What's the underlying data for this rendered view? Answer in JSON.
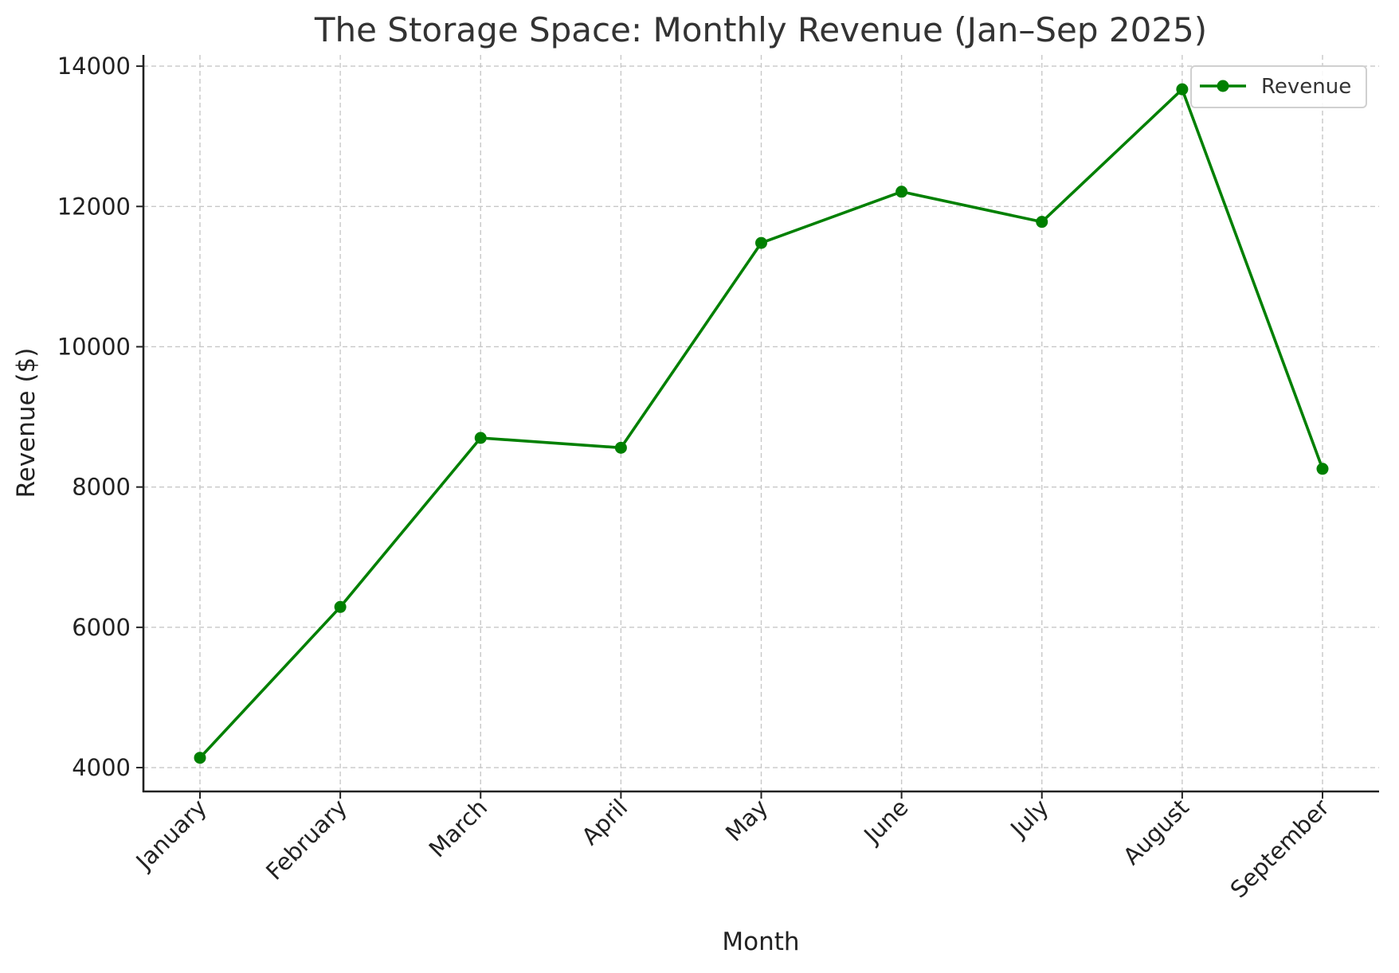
{
  "chart_data": {
    "type": "line",
    "title": "The Storage Space: Monthly Revenue (Jan–Sep 2025)",
    "xlabel": "Month",
    "ylabel": "Revenue ($)",
    "categories": [
      "January",
      "February",
      "March",
      "April",
      "May",
      "June",
      "July",
      "August",
      "September"
    ],
    "series": [
      {
        "name": "Revenue",
        "color": "#008000",
        "marker": "circle",
        "values": [
          4140,
          6290,
          8700,
          8560,
          11480,
          12210,
          11780,
          13670,
          8260
        ]
      }
    ],
    "yticks": [
      4000,
      6000,
      8000,
      10000,
      12000,
      14000
    ],
    "ylim": [
      3660,
      14160
    ],
    "grid": true,
    "grid_style": "dashed",
    "legend_position": "upper right",
    "xtick_rotation": 45
  },
  "colors": {
    "line": "#008000",
    "grid": "#c8c8c8",
    "text": "#222222",
    "title": "#333333"
  }
}
